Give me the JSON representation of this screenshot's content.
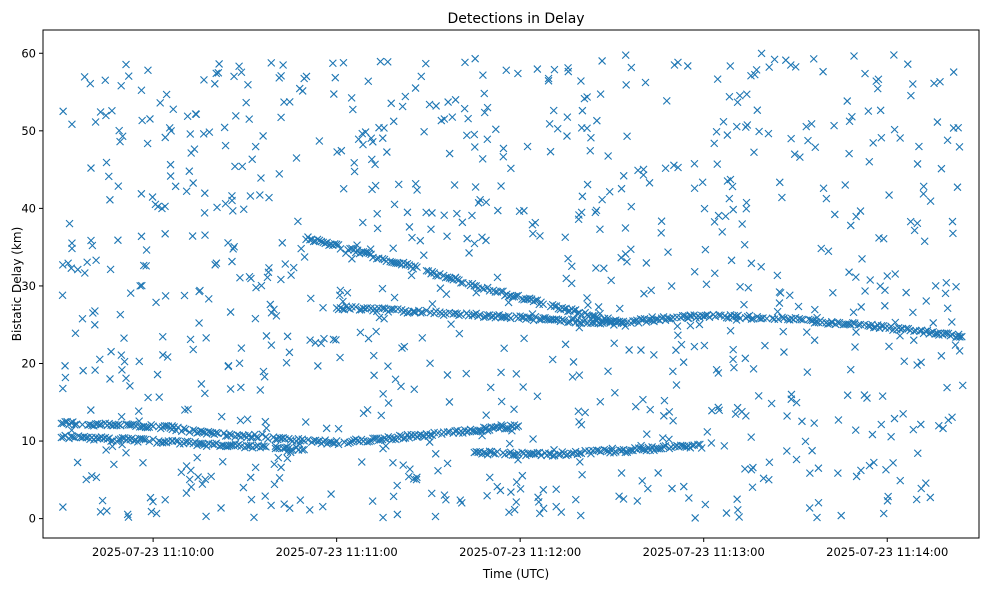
{
  "chart_data": {
    "type": "scatter",
    "title": "Detections in Delay",
    "xlabel": "Time (UTC)",
    "ylabel": "Bistatic Delay (km)",
    "marker": "x",
    "marker_color": "#1f77b4",
    "grid": false,
    "xlim": [
      "2025-07-23 11:09:24",
      "2025-07-23 11:14:30"
    ],
    "ylim": [
      -2.5,
      63
    ],
    "x_ticks": [
      "2025-07-23 11:10:00",
      "2025-07-23 11:11:00",
      "2025-07-23 11:12:00",
      "2025-07-23 11:13:00",
      "2025-07-23 11:14:00"
    ],
    "y_ticks": [
      0,
      10,
      20,
      30,
      40,
      50,
      60
    ],
    "tracks": [
      {
        "description": "descending track",
        "x": [
          "2025-07-23 11:10:50",
          "2025-07-23 11:11:20",
          "2025-07-23 11:11:50",
          "2025-07-23 11:12:20",
          "2025-07-23 11:12:35"
        ],
        "y": [
          36.2,
          33.0,
          29.5,
          26.5,
          25.0
        ]
      },
      {
        "description": "long slow track",
        "x": [
          "2025-07-23 11:11:00",
          "2025-07-23 11:11:30",
          "2025-07-23 11:12:00",
          "2025-07-23 11:12:30",
          "2025-07-23 11:13:00",
          "2025-07-23 11:13:30",
          "2025-07-23 11:14:00",
          "2025-07-23 11:14:25"
        ],
        "y": [
          27.2,
          26.6,
          25.9,
          25.2,
          26.2,
          25.7,
          24.6,
          23.5
        ]
      },
      {
        "description": "lower rising track",
        "x": [
          "2025-07-23 11:09:30",
          "2025-07-23 11:10:00",
          "2025-07-23 11:10:30",
          "2025-07-23 11:11:00",
          "2025-07-23 11:11:30",
          "2025-07-23 11:12:00"
        ],
        "y": [
          12.3,
          11.9,
          10.6,
          9.8,
          10.8,
          12.0
        ]
      },
      {
        "description": "lower descending track",
        "x": [
          "2025-07-23 11:09:30",
          "2025-07-23 11:10:00",
          "2025-07-23 11:10:20",
          "2025-07-23 11:10:50"
        ],
        "y": [
          10.5,
          10.0,
          9.5,
          9.0
        ]
      },
      {
        "description": "middle lower track",
        "x": [
          "2025-07-23 11:11:45",
          "2025-07-23 11:12:10",
          "2025-07-23 11:12:35",
          "2025-07-23 11:13:00"
        ],
        "y": [
          8.5,
          8.3,
          8.8,
          9.5
        ]
      }
    ],
    "clutter": {
      "description": "random false detections",
      "count": 900,
      "x_range": [
        "2025-07-23 11:09:30",
        "2025-07-23 11:14:25"
      ],
      "y_range": [
        0,
        60
      ]
    }
  }
}
